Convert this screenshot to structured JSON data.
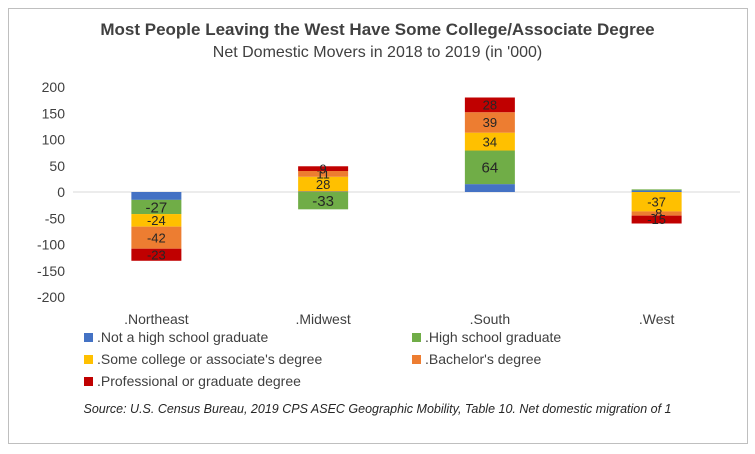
{
  "title": "Most People Leaving the West Have Some College/Associate Degree",
  "subtitle": "Net Domestic Movers in 2018 to 2019 (in '000)",
  "source": "Source: U.S. Census Bureau, 2019 CPS ASEC Geographic Mobility, Table 10. Net domestic migration of 1",
  "chart_data": {
    "type": "bar",
    "stacked": true,
    "categories": [
      ".Northeast",
      ".Midwest",
      ".South",
      ".West"
    ],
    "ylim": [
      -200,
      200
    ],
    "yticks": [
      200,
      150,
      100,
      50,
      0,
      -50,
      -100,
      -150,
      -200
    ],
    "ytick_labels": [
      "200",
      "150",
      "100",
      "50",
      "0",
      "-50",
      "-100",
      "-150",
      "-200"
    ],
    "gridlines": false,
    "legend_position": "bottom",
    "series": [
      {
        "name": ".Not a high school graduate",
        "color": "#4472C4",
        "values": [
          -15,
          1,
          15,
          3
        ],
        "labels": [
          "",
          "",
          "",
          ""
        ]
      },
      {
        "name": ".High school graduate",
        "color": "#70AD47",
        "values": [
          -27,
          -33,
          64,
          2
        ],
        "labels": [
          "-27",
          "-33",
          "64",
          ""
        ]
      },
      {
        "name": ".Some college or associate's degree",
        "color": "#FFC000",
        "values": [
          -24,
          28,
          34,
          -37
        ],
        "labels": [
          "-24",
          "28",
          "34",
          "-37"
        ]
      },
      {
        "name": ".Bachelor's degree",
        "color": "#ED7D31",
        "values": [
          -42,
          11,
          39,
          -8
        ],
        "labels": [
          "-42",
          "11",
          "39",
          "-8"
        ]
      },
      {
        "name": ".Professional or graduate degree",
        "color": "#C00000",
        "values": [
          -23,
          9,
          28,
          -15
        ],
        "labels": [
          "-23",
          "9",
          "28",
          "-15"
        ]
      }
    ]
  }
}
